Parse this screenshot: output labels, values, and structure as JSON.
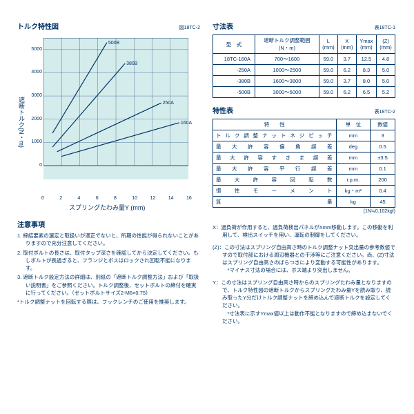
{
  "chart": {
    "title": "トルク特性図",
    "figref": "図18TC-2",
    "ylabel": "遮断トルク(N・m)",
    "xlabel": "スプリングたわみ量Y (mm)",
    "bg_color": "#d4ecec",
    "axis_color": "#003366",
    "xlim": [
      0,
      16
    ],
    "ylim": [
      0,
      5500
    ],
    "xticks": [
      0,
      2,
      4,
      6,
      8,
      10,
      12,
      14,
      16
    ],
    "yticks": [
      0,
      1000,
      2000,
      3000,
      4000,
      5000
    ],
    "lines": [
      {
        "label": "500B",
        "x1": 1.0,
        "y1": 1400,
        "x2": 7.0,
        "y2": 5300
      },
      {
        "label": "380B",
        "x1": 1.0,
        "y1": 800,
        "x2": 9.0,
        "y2": 4400
      },
      {
        "label": "250A",
        "x1": 1.5,
        "y1": 600,
        "x2": 13.0,
        "y2": 2700
      },
      {
        "label": "160A",
        "x1": 2.0,
        "y1": 400,
        "x2": 15.0,
        "y2": 1850
      }
    ],
    "line_color": "#003366",
    "line_width": 1.2
  },
  "dim_table": {
    "title": "寸法表",
    "ref": "表18TC-1",
    "headers": [
      "型　式",
      "遮断トルク調整範囲\n(N・m)",
      "L\n(mm)",
      "X\n(mm)",
      "Ymax\n(mm)",
      "(Z)\n(mm)"
    ],
    "rows": [
      [
        "18TC-160A",
        "700〜1600",
        "59.0",
        "3.7",
        "12.5",
        "4.8"
      ],
      [
        "-250A",
        "1000〜2500",
        "59.0",
        "6.2",
        "8.3",
        "5.0"
      ],
      [
        "-380B",
        "1600〜3800",
        "59.0",
        "3.7",
        "8.0",
        "5.0"
      ],
      [
        "-500B",
        "3000〜5000",
        "59.0",
        "6.2",
        "6.5",
        "5.2"
      ]
    ]
  },
  "char_table": {
    "title": "特性表",
    "ref": "表18TC-2",
    "headers": [
      "特　　性",
      "単　位",
      "数値"
    ],
    "rows": [
      [
        "トルク調整ナットネジピッチ",
        "mm",
        "3"
      ],
      [
        "最大許容偏角誤差",
        "deg",
        "0.5"
      ],
      [
        "最大許容すきま誤差",
        "mm",
        "±3.5"
      ],
      [
        "最大許容平行誤差",
        "mm",
        "0.1"
      ],
      [
        "最大許容回転数",
        "r.p.m.",
        "200"
      ],
      [
        "慣性モーメント",
        "kg・m²",
        "0.4"
      ],
      [
        "質　　　量",
        "kg",
        "45"
      ]
    ],
    "footnote": "(1N≒0.102kgf)"
  },
  "notes_left": {
    "title": "注意事項",
    "items": [
      "1. 締結要素の選定と取扱いが適正でないと、所期の性能が得られないことがありますので充分注意してください。",
      "2. 取付ボルトの長さは、取付タップ深さを確認してから決定してください。もしボルトが長過ぎると、フランジとボスはロックされ回転不能になります。",
      "3. 遮断トルク設定方法の詳細は、別紙の「遮断トルク調整方法」および「取扱い説明書」をご参照ください。トルク調整後、セットボルトの締付を確実に行ってください。（セットボルトサイズ2-M6×0.75）",
      "*トルク調整ナットを回転する際は、フックレンチのご使用を推奨します。"
    ]
  },
  "notes_right": [
    "X：過負荷が作用すると、過負荷検出パネルがXmm移動します。この移動を利用して、検出スイッチを用い、運転の制御をしてください。",
    "(Z)：この寸法はスプリング自由高さ時のトルク調整ナット突出量の参考数値ですので取付部における周辺機器との干渉等にご注意ください。尚、(Z)寸法はスプリング自由高さのばらつきにより変動する可能性があります。\n*マイナス寸法の場合には、ボス端より突出しません。",
    "Y：この寸法はスプリング自由高さ時からのスプリングたわみ量となりますので、トルク特性図の遮断トルクからスプリングたわみ量Yを読み取り、読み取ったY分だけトルク調整ナットを締め込んで遮断トルクを設定してください。\n*寸法表に示すYmax値以上は動作不能となりますので締め込まないでください。"
  ]
}
